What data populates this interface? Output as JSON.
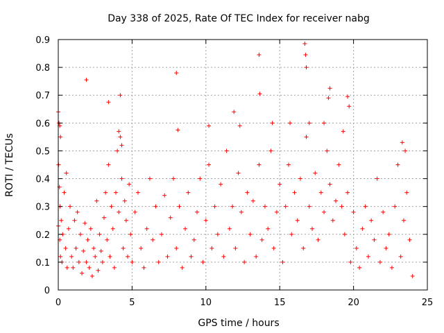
{
  "chart_data": {
    "type": "scatter",
    "title": "Day 338 of 2025, Rate Of TEC Index for receiver nabg",
    "xlabel": "GPS time / hours",
    "ylabel": "ROTI / TECUs",
    "xlim": [
      0,
      25
    ],
    "ylim": [
      0,
      0.9
    ],
    "xticks": [
      0,
      5,
      10,
      15,
      20,
      25
    ],
    "yticks": [
      0,
      0.1,
      0.2,
      0.3,
      0.4,
      0.5,
      0.6,
      0.7,
      0.8,
      0.9
    ],
    "grid": true,
    "marker": "+",
    "color": "#ff0000",
    "series": [
      {
        "name": "ROTI",
        "x": [
          0.0,
          0.0,
          0.02,
          0.05,
          0.08,
          0.1,
          0.12,
          0.15,
          0.2,
          0.25,
          0.3,
          0.4,
          0.5,
          0.55,
          0.6,
          0.7,
          0.8,
          0.9,
          1.0,
          1.1,
          1.2,
          1.3,
          1.4,
          1.5,
          1.6,
          1.7,
          1.8,
          1.9,
          2.0,
          2.1,
          2.2,
          2.3,
          2.4,
          2.5,
          2.6,
          2.7,
          2.8,
          2.9,
          3.0,
          3.1,
          3.2,
          3.3,
          3.4,
          3.5,
          3.6,
          3.7,
          3.8,
          3.9,
          4.0,
          4.1,
          4.2,
          4.3,
          4.4,
          4.5,
          4.6,
          4.7,
          4.8,
          4.9,
          5.0,
          5.2,
          5.4,
          5.6,
          5.8,
          6.0,
          6.2,
          6.4,
          6.6,
          6.8,
          7.0,
          7.2,
          7.4,
          7.6,
          7.8,
          8.0,
          8.2,
          8.4,
          8.6,
          8.8,
          9.0,
          9.2,
          9.4,
          9.6,
          9.8,
          10.0,
          10.2,
          10.4,
          10.6,
          10.8,
          11.0,
          11.2,
          11.4,
          11.6,
          11.8,
          12.0,
          12.2,
          12.4,
          12.6,
          12.8,
          13.0,
          13.2,
          13.4,
          13.6,
          13.8,
          14.0,
          14.2,
          14.4,
          14.6,
          14.8,
          15.0,
          15.2,
          15.4,
          15.6,
          15.8,
          16.0,
          16.2,
          16.4,
          16.6,
          16.8,
          17.0,
          17.2,
          17.4,
          17.6,
          17.8,
          18.0,
          18.2,
          18.4,
          18.6,
          18.8,
          19.0,
          19.2,
          19.4,
          19.6,
          19.8,
          20.0,
          20.2,
          20.4,
          20.6,
          20.8,
          21.0,
          21.2,
          21.4,
          21.6,
          21.8,
          22.0,
          22.2,
          22.4,
          22.6,
          22.8,
          23.0,
          23.2,
          23.4,
          23.6,
          23.8,
          24.0,
          1.9,
          3.4,
          4.2,
          8.0,
          8.1,
          11.9,
          13.6,
          13.65,
          16.7,
          16.75,
          16.8,
          18.4,
          18.3,
          19.6,
          19.7,
          0.1,
          0.15,
          4.1,
          4.3,
          10.2,
          12.3,
          14.5,
          15.7,
          17.0,
          18.0,
          19.3,
          23.3,
          23.5
        ],
        "y": [
          0.23,
          0.64,
          0.45,
          0.6,
          0.37,
          0.18,
          0.3,
          0.12,
          0.25,
          0.1,
          0.2,
          0.35,
          0.15,
          0.42,
          0.08,
          0.22,
          0.3,
          0.12,
          0.08,
          0.25,
          0.15,
          0.28,
          0.1,
          0.2,
          0.06,
          0.14,
          0.24,
          0.1,
          0.18,
          0.08,
          0.22,
          0.05,
          0.15,
          0.12,
          0.32,
          0.07,
          0.2,
          0.14,
          0.1,
          0.26,
          0.35,
          0.18,
          0.45,
          0.12,
          0.3,
          0.22,
          0.08,
          0.35,
          0.5,
          0.28,
          0.55,
          0.4,
          0.15,
          0.32,
          0.25,
          0.12,
          0.38,
          0.2,
          0.1,
          0.28,
          0.35,
          0.15,
          0.08,
          0.22,
          0.4,
          0.18,
          0.3,
          0.1,
          0.2,
          0.34,
          0.12,
          0.26,
          0.4,
          0.15,
          0.3,
          0.08,
          0.22,
          0.35,
          0.12,
          0.18,
          0.28,
          0.4,
          0.1,
          0.25,
          0.45,
          0.15,
          0.3,
          0.2,
          0.38,
          0.12,
          0.5,
          0.22,
          0.3,
          0.15,
          0.42,
          0.28,
          0.1,
          0.35,
          0.2,
          0.32,
          0.12,
          0.45,
          0.18,
          0.3,
          0.22,
          0.5,
          0.15,
          0.28,
          0.38,
          0.1,
          0.3,
          0.45,
          0.2,
          0.35,
          0.25,
          0.4,
          0.15,
          0.55,
          0.3,
          0.22,
          0.42,
          0.18,
          0.35,
          0.28,
          0.5,
          0.38,
          0.25,
          0.32,
          0.45,
          0.3,
          0.2,
          0.35,
          0.1,
          0.28,
          0.15,
          0.08,
          0.22,
          0.3,
          0.12,
          0.25,
          0.18,
          0.4,
          0.1,
          0.28,
          0.15,
          0.2,
          0.08,
          0.3,
          0.45,
          0.12,
          0.25,
          0.35,
          0.18,
          0.05,
          0.755,
          0.675,
          0.7,
          0.78,
          0.575,
          0.64,
          0.845,
          0.705,
          0.885,
          0.845,
          0.8,
          0.725,
          0.69,
          0.695,
          0.66,
          0.59,
          0.55,
          0.57,
          0.52,
          0.59,
          0.59,
          0.6,
          0.6,
          0.6,
          0.6,
          0.57,
          0.53,
          0.5
        ]
      }
    ]
  }
}
